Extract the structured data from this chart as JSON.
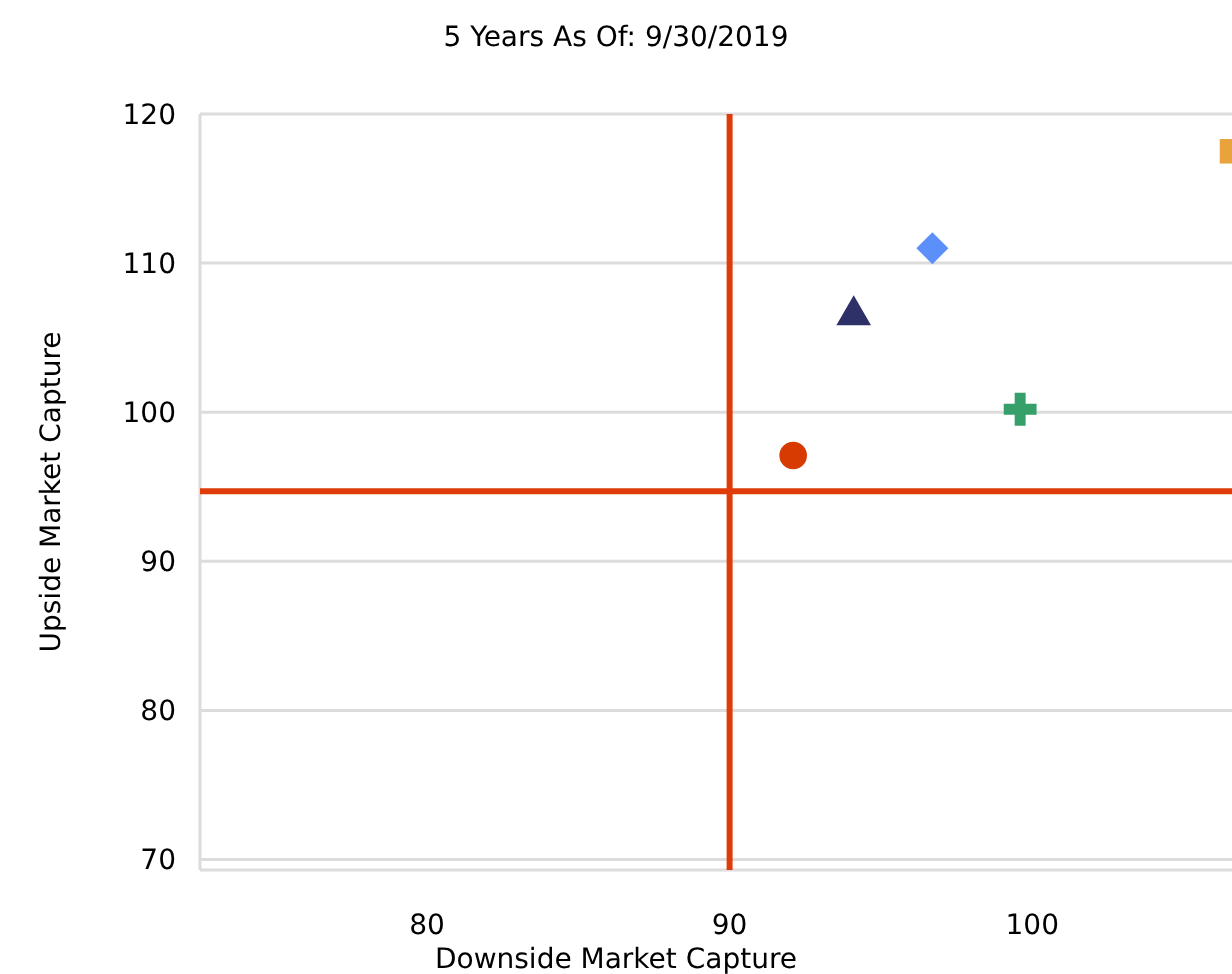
{
  "chart_data": {
    "type": "scatter",
    "title": "5 Years As Of: 9/30/2019",
    "xlabel": "Downside Market Capture",
    "ylabel": "Upside Market Capture",
    "xlim": [
      72.5,
      106.6
    ],
    "xticks": [
      80,
      90,
      100
    ],
    "ylim": [
      69.3,
      120
    ],
    "yticks": [
      70,
      80,
      90,
      100,
      110,
      120
    ],
    "grid": "y",
    "series": [
      {
        "color": "#d83b01",
        "marker": "circle",
        "x": [
          92.1
        ],
        "values": [
          97.1
        ]
      },
      {
        "color": "#2e3068",
        "marker": "triangle",
        "x": [
          94.1
        ],
        "values": [
          106.5
        ]
      },
      {
        "color": "#5b8ff9",
        "marker": "diamond",
        "x": [
          96.7
        ],
        "values": [
          111.0
        ]
      },
      {
        "color": "#36a06a",
        "marker": "cross",
        "x": [
          99.6
        ],
        "values": [
          100.2
        ]
      },
      {
        "color": "#e8a33c",
        "marker": "square",
        "x": [
          106.6
        ],
        "values": [
          117.5
        ]
      }
    ],
    "ref_lines": [
      {
        "axis": "x",
        "value": 90,
        "color": "#e03c0a"
      },
      {
        "axis": "y",
        "value": 94.7,
        "color": "#e03c0a"
      }
    ]
  }
}
